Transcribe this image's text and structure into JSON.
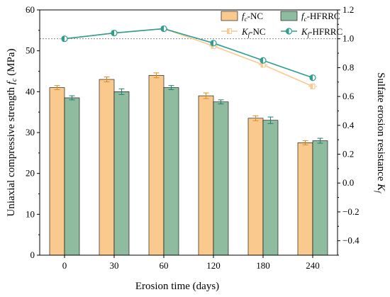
{
  "chart_data": {
    "type": "bar",
    "title": "",
    "categories": [
      "0",
      "30",
      "60",
      "120",
      "180",
      "240"
    ],
    "xlabel": "Erosion time (days)",
    "ylabel_left": "Uniaxial compressive strength f_c (MPa)",
    "ylabel_left_main": "Uniaxial compressive strength ",
    "ylabel_left_symbol": "f",
    "ylabel_left_sub": "c",
    "ylabel_left_unit": " (MPa)",
    "ylabel_right": "Sulfate erosion resistance K_f",
    "ylabel_right_main": "Sulfate erosion resistance ",
    "ylabel_right_symbol": "K",
    "ylabel_right_sub": "f",
    "ylim_left": [
      0,
      60
    ],
    "ylim_right": [
      -0.5,
      1.2
    ],
    "yticks_left": [
      "0",
      "10",
      "20",
      "30",
      "40",
      "50",
      "60"
    ],
    "yticks_right": [
      "−0.4",
      "−0.2",
      "0.0",
      "0.2",
      "0.4",
      "0.6",
      "0.8",
      "1.0",
      "1.2"
    ],
    "reference_line": 1.0,
    "bar_series": [
      {
        "name": "f_c-NC",
        "symbol": "f",
        "sub": "c",
        "suffix": "-NC",
        "color": "#FAC98E",
        "values": [
          41.0,
          43.0,
          44.0,
          39.0,
          33.5,
          27.5
        ],
        "errors": [
          0.5,
          0.6,
          0.6,
          0.7,
          0.6,
          0.5
        ]
      },
      {
        "name": "f_c-HFRRC",
        "symbol": "f",
        "sub": "c",
        "suffix": "-HFRRC",
        "color": "#8FBC9E",
        "values": [
          38.5,
          40.0,
          41.0,
          37.5,
          33.0,
          28.0
        ],
        "errors": [
          0.5,
          0.7,
          0.5,
          0.5,
          0.8,
          0.6
        ]
      }
    ],
    "line_series": [
      {
        "name": "K_f-NC",
        "symbol": "K",
        "sub": "f",
        "suffix": "-NC",
        "color": "#FAC98E",
        "values": [
          1.0,
          1.04,
          1.07,
          0.95,
          0.82,
          0.67
        ]
      },
      {
        "name": "K_f-HFRRC",
        "symbol": "K",
        "sub": "f",
        "suffix": "-HFRRC",
        "color": "#2E9E8F",
        "values": [
          1.0,
          1.04,
          1.07,
          0.97,
          0.85,
          0.73
        ]
      }
    ],
    "legend_position": "top-right",
    "grid": false
  }
}
